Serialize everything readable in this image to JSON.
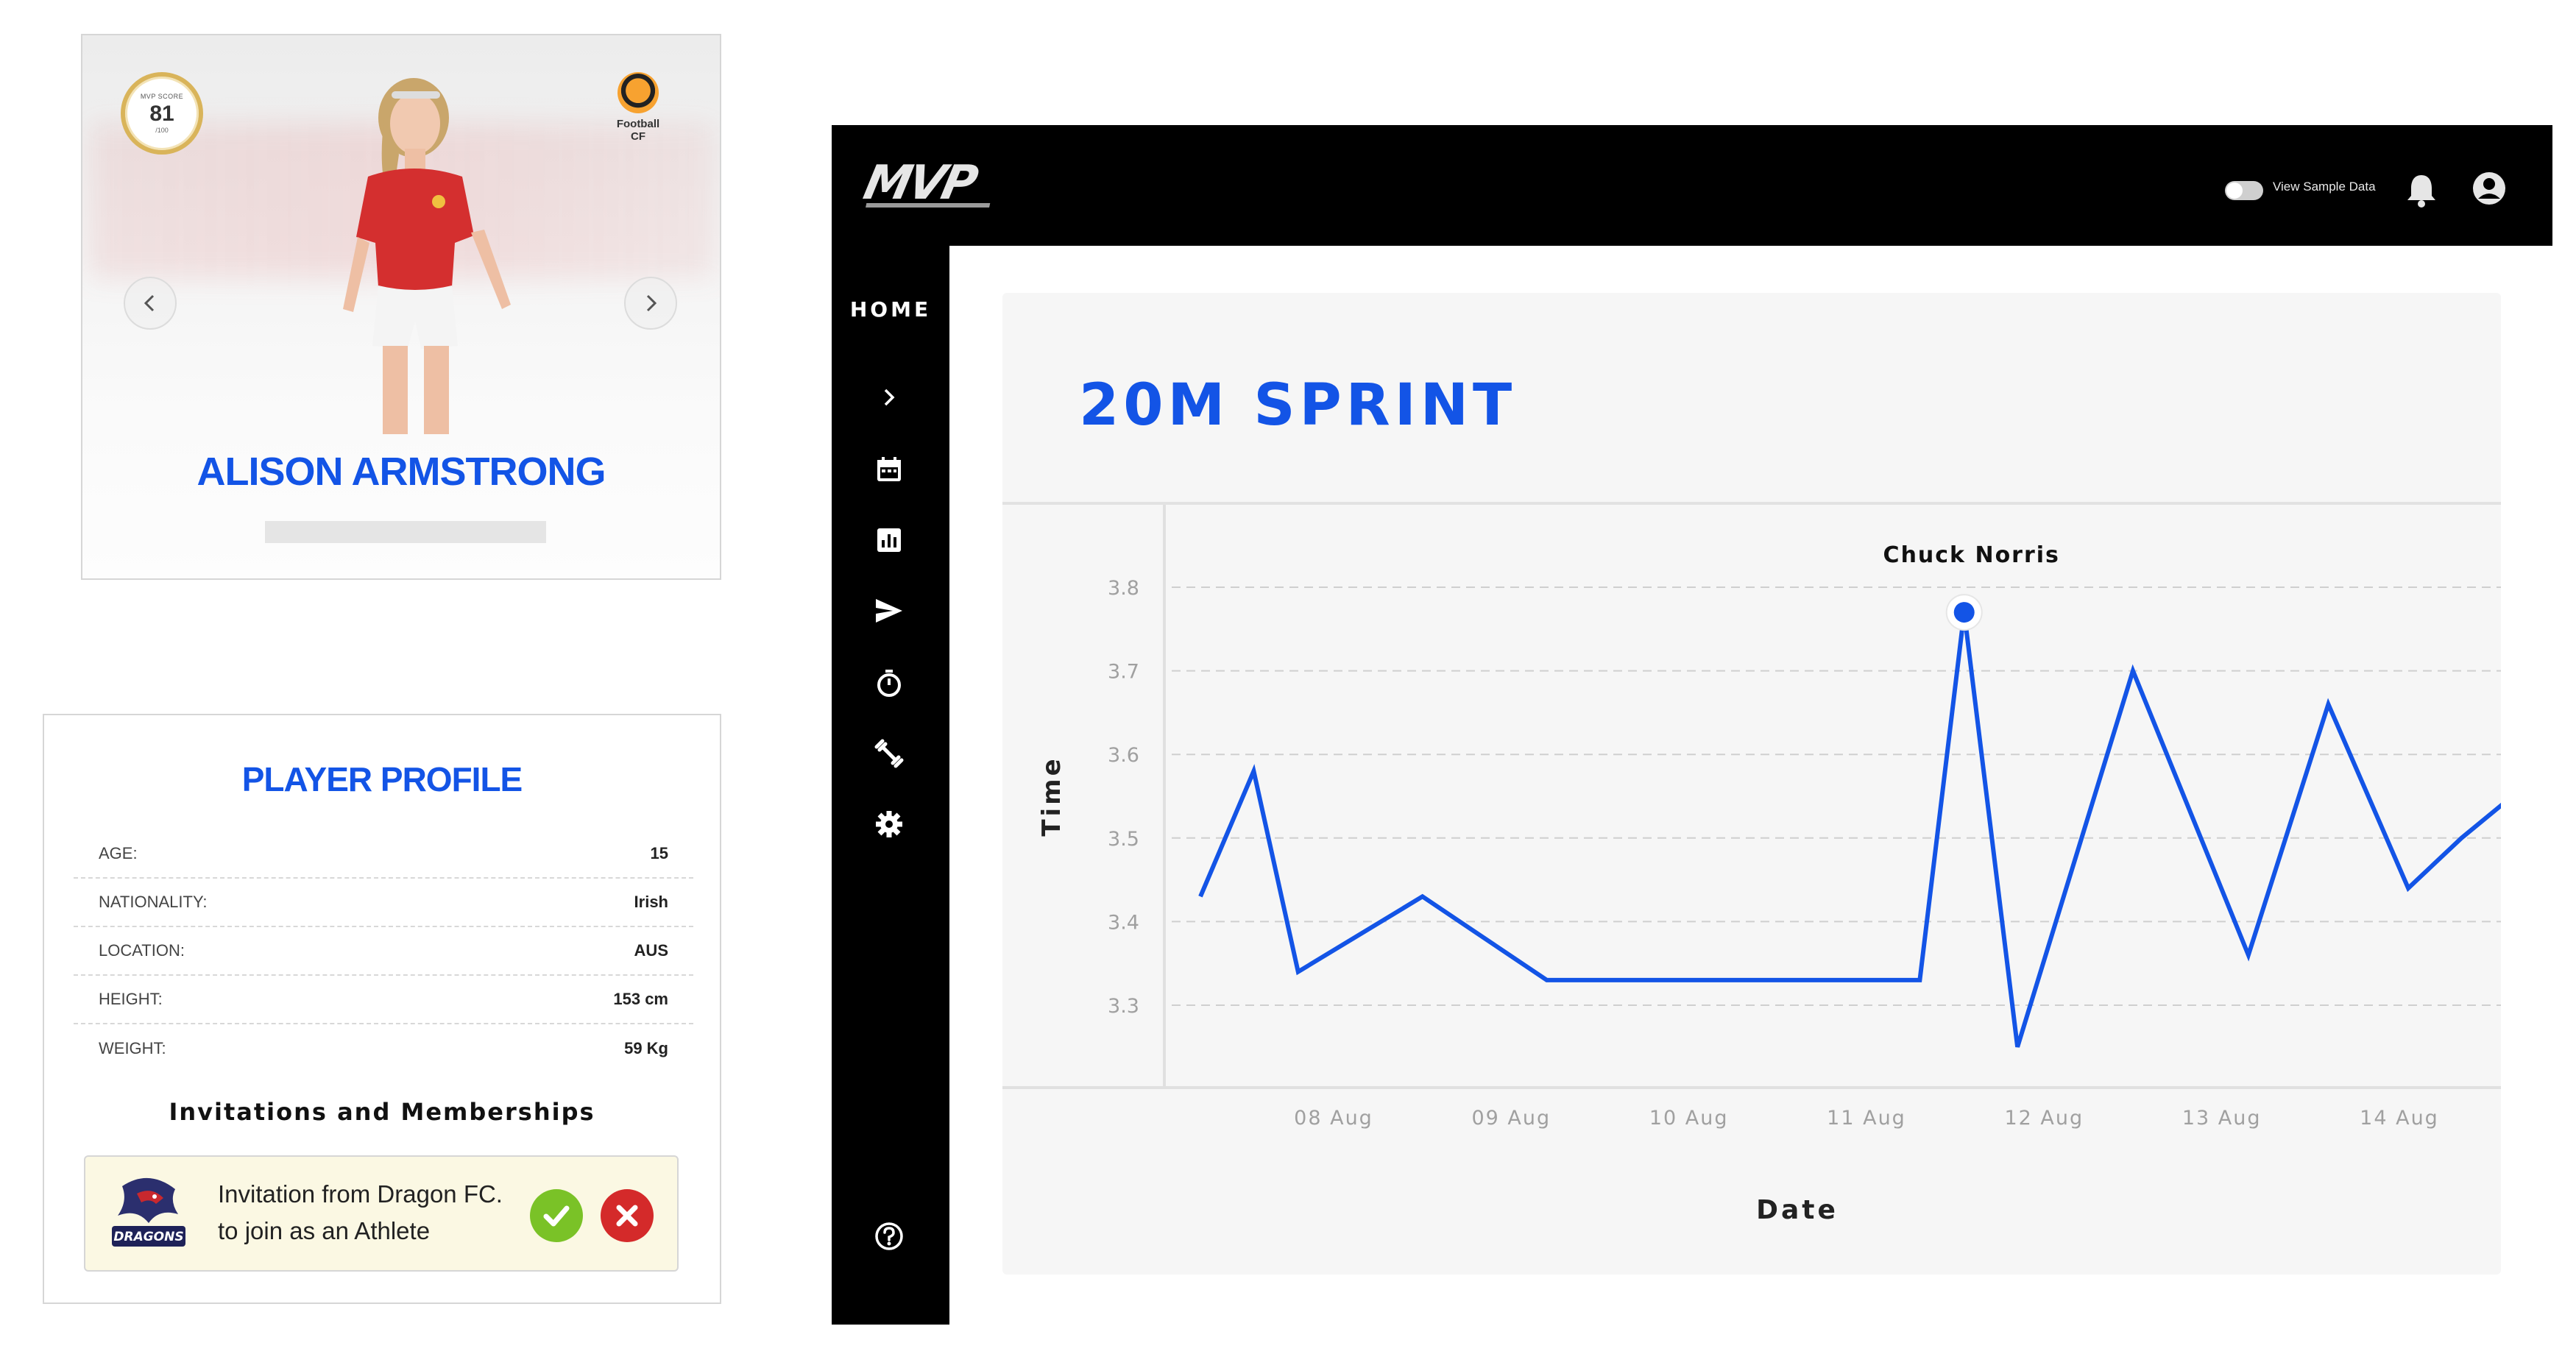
{
  "player_card": {
    "mvp_score_label": "MVP SCORE",
    "mvp_score": "81",
    "mvp_score_max": "/100",
    "club_name_line1": "Football",
    "club_name_line2": "CF",
    "player_name": "ALISON ARMSTRONG",
    "prev_icon": "chevron-left-icon",
    "next_icon": "chevron-right-icon"
  },
  "profile": {
    "title": "PLAYER PROFILE",
    "rows": [
      {
        "label": "AGE:",
        "value": "15"
      },
      {
        "label": "NATIONALITY:",
        "value": "Irish"
      },
      {
        "label": "LOCATION:",
        "value": "AUS"
      },
      {
        "label": "HEIGHT:",
        "value": "153 cm"
      },
      {
        "label": "WEIGHT:",
        "value": "59 Kg"
      }
    ],
    "invitations_title": "Invitations and Memberships",
    "invitation_line1": "Invitation from Dragon FC.",
    "invitation_line2": "to join as an Athlete",
    "invitation_logo_text": "DRAGONS",
    "accept_icon": "check-icon",
    "reject_icon": "close-icon"
  },
  "app": {
    "logo_text": "MVP",
    "toggle_label": "View Sample Data",
    "toggle_on": false,
    "nav_home": "HOME",
    "nav_icons": [
      "chevron-right-icon",
      "calendar-icon",
      "bar-chart-icon",
      "send-icon",
      "stopwatch-icon",
      "dumbbell-icon",
      "gear-icon"
    ],
    "help_icon": "help-icon",
    "accent_color": "#1354e6"
  },
  "chart_data": {
    "type": "line",
    "title": "20M SPRINT",
    "xlabel": "Date",
    "ylabel": "Time",
    "x_tick_labels": [
      "08 Aug",
      "09 Aug",
      "10 Aug",
      "11 Aug",
      "12 Aug",
      "13 Aug",
      "14 Aug"
    ],
    "y_ticks": [
      3.3,
      3.4,
      3.5,
      3.6,
      3.7,
      3.8
    ],
    "ylim": [
      3.2,
      3.9
    ],
    "grid": true,
    "series": [
      {
        "color": "#1354e6",
        "x_days": [
          7.25,
          7.55,
          7.8,
          8.5,
          9.2,
          9.9,
          10.6,
          11.3,
          11.55,
          11.85,
          12.5,
          13.15,
          13.6,
          14.05,
          14.35,
          14.75
        ],
        "values": [
          3.43,
          3.58,
          3.34,
          3.43,
          3.33,
          3.33,
          3.33,
          3.33,
          3.77,
          3.25,
          3.7,
          3.36,
          3.66,
          3.44,
          3.5,
          3.57
        ]
      }
    ],
    "highlight": {
      "index": 8,
      "label": "Chuck Norris"
    }
  }
}
